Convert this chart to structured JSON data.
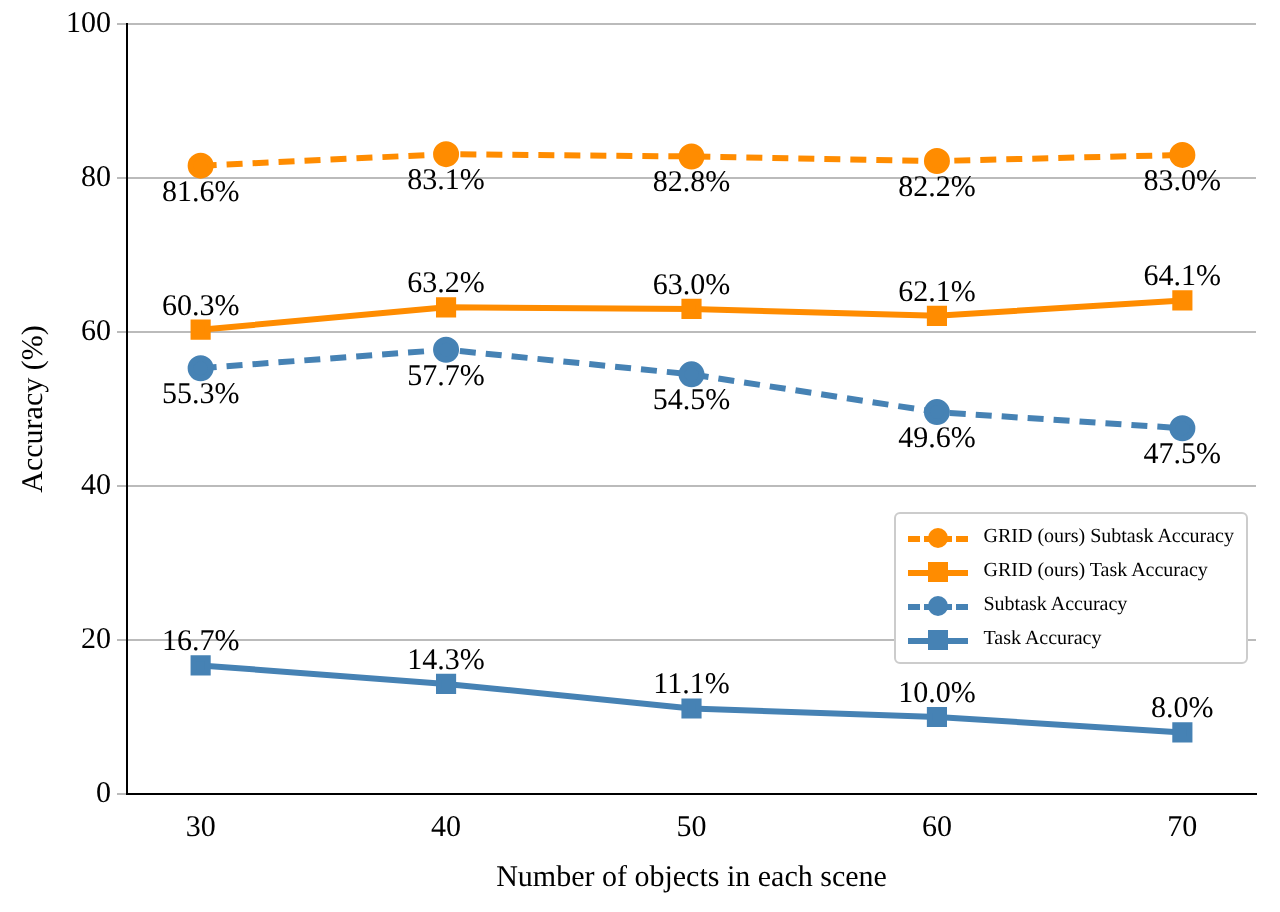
{
  "chart_data": {
    "type": "line",
    "xlabel": "Number of objects in each scene",
    "ylabel": "Accuracy (%)",
    "x": [
      30,
      40,
      50,
      60,
      70
    ],
    "xlim": [
      27,
      73
    ],
    "xticks": [
      30,
      40,
      50,
      60,
      70
    ],
    "ylim": [
      0,
      100
    ],
    "yticks": [
      0,
      20,
      40,
      60,
      80,
      100
    ],
    "grid": "y",
    "legend": "bottom right",
    "series": [
      {
        "name": "GRID (ours) Subtask Accuracy",
        "color": "#ff8c00",
        "marker": "circle",
        "line_style": "dashed",
        "values": [
          81.6,
          83.1,
          82.8,
          82.2,
          83.0
        ],
        "value_labels": [
          "81.6%",
          "83.1%",
          "82.8%",
          "82.2%",
          "83.0%"
        ]
      },
      {
        "name": "GRID (ours) Task Accuracy",
        "color": "#ff8c00",
        "marker": "square",
        "line_style": "solid",
        "values": [
          60.3,
          63.2,
          63.0,
          62.1,
          64.1
        ],
        "value_labels": [
          "60.3%",
          "63.2%",
          "63.0%",
          "62.1%",
          "64.1%"
        ]
      },
      {
        "name": "Subtask Accuracy",
        "color": "#4682b4",
        "marker": "circle",
        "line_style": "dashed",
        "values": [
          55.3,
          57.7,
          54.5,
          49.6,
          47.5
        ],
        "value_labels": [
          "55.3%",
          "57.7%",
          "54.5%",
          "49.6%",
          "47.5%"
        ]
      },
      {
        "name": "Task Accuracy",
        "color": "#4682b4",
        "marker": "square",
        "line_style": "solid",
        "values": [
          16.7,
          14.3,
          11.1,
          10.0,
          8.0
        ],
        "value_labels": [
          "16.7%",
          "14.3%",
          "11.1%",
          "10.0%",
          "8.0%"
        ]
      }
    ]
  }
}
